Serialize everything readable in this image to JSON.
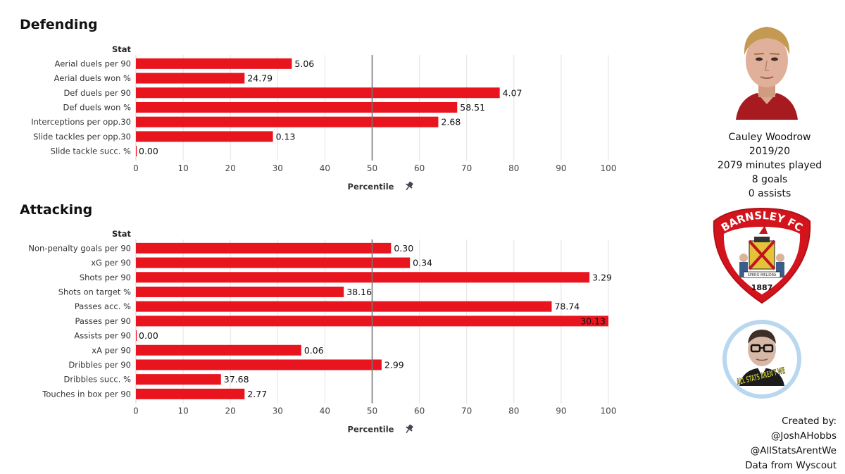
{
  "sections": {
    "defending_title": "Defending",
    "attacking_title": "Attacking"
  },
  "chart_data": [
    {
      "type": "bar",
      "orientation": "horizontal",
      "title": "Defending",
      "ylabel": "Stat",
      "xlabel": "Percentile",
      "xlim": [
        0,
        100
      ],
      "xticks": [
        0,
        10,
        20,
        30,
        40,
        50,
        60,
        70,
        80,
        90,
        100
      ],
      "reference_line": 50,
      "grid": "vertical",
      "bar_color": "#e8141e",
      "categories": [
        "Aerial duels per 90",
        "Aerial duels won %",
        "Def duels per 90",
        "Def duels won %",
        "Interceptions per opp.30",
        "Slide tackles per opp.30",
        "Slide tackle succ. %"
      ],
      "percentiles": [
        33,
        23,
        77,
        68,
        64,
        29,
        0
      ],
      "labels": [
        "5.06",
        "24.79",
        "4.07",
        "58.51",
        "2.68",
        "0.13",
        "0.00"
      ]
    },
    {
      "type": "bar",
      "orientation": "horizontal",
      "title": "Attacking",
      "ylabel": "Stat",
      "xlabel": "Percentile",
      "xlim": [
        0,
        100
      ],
      "xticks": [
        0,
        10,
        20,
        30,
        40,
        50,
        60,
        70,
        80,
        90,
        100
      ],
      "reference_line": 50,
      "grid": "vertical",
      "bar_color": "#e8141e",
      "categories": [
        "Non-penalty goals per 90",
        "xG per 90",
        "Shots per 90",
        "Shots on target %",
        "Passes acc. %",
        "Passes per 90",
        "Assists per 90",
        "xA per 90",
        "Dribbles per 90",
        "Dribbles succ. %",
        "Touches in box per 90"
      ],
      "percentiles": [
        54,
        58,
        96,
        44,
        88,
        100,
        0,
        35,
        52,
        18,
        23
      ],
      "labels": [
        "0.30",
        "0.34",
        "3.29",
        "38.16",
        "78.74",
        "30.13",
        "0.00",
        "0.06",
        "2.99",
        "37.68",
        "2.77"
      ]
    }
  ],
  "player": {
    "name": "Cauley Woodrow",
    "season": "2019/20",
    "minutes": "2079 minutes played",
    "goals": "8 goals",
    "assists": "0 assists"
  },
  "club_crest": {
    "name_text": "BARNSLEY FC",
    "year": "1887",
    "motto": "SPERO MELIORA",
    "primary_color": "#d4141c"
  },
  "ast_logo": {
    "text": "ALL STATS AREN'T WE",
    "ring_color": "#b9d7ee"
  },
  "credits": {
    "line1": "Created by:",
    "line2": "@JoshAHobbs",
    "line3": "@AllStatsArentWe",
    "line4": "Data from Wyscout"
  }
}
